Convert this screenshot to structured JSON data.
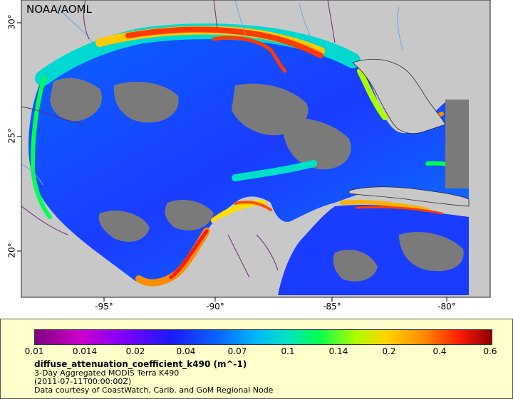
{
  "map": {
    "agency_label": "NOAA/AOML",
    "x_ticks": [
      "-95°",
      "-90°",
      "-85°",
      "-80°"
    ],
    "y_ticks": [
      "30°",
      "25°",
      "20°"
    ],
    "colors": {
      "land": "#c8c8c8",
      "no_data": "#7a7a7a",
      "coast": "#2a2a2a",
      "rivers": "#6aa6e8",
      "borders": "#6b2a6b"
    }
  },
  "legend": {
    "colorbar_ticks": [
      "0.01",
      "0.014",
      "0.02",
      "0.04",
      "0.07",
      "0.1",
      "0.14",
      "0.2",
      "0.4",
      "0.6"
    ],
    "title": "diffuse_attenuation_coefficient_k490 (m^-1)",
    "line1": "3-Day Aggregated MODIS Terra K490",
    "line2": "(2011-07-11T00:00:00Z)",
    "line3": "Data courtesy of CoastWatch, Carib. and GoM Regional Node"
  }
}
